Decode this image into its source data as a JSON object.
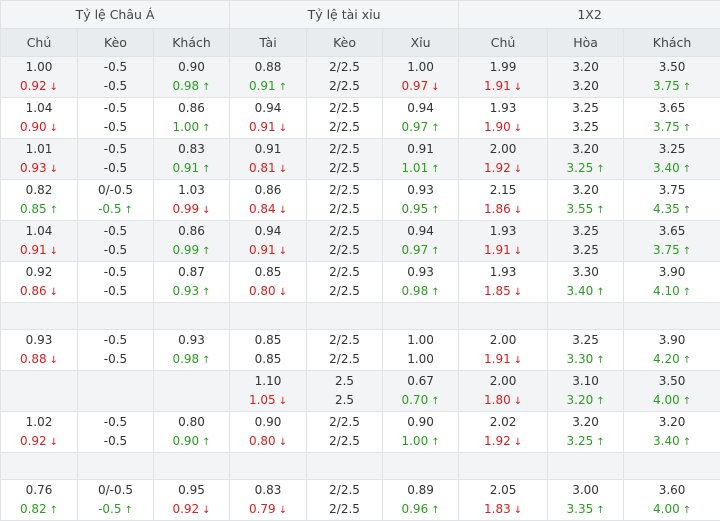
{
  "headers": {
    "groups": [
      "Tỷ lệ Châu Á",
      "Tỷ lệ tài xỉu",
      "1X2"
    ],
    "columns": [
      "Chủ",
      "Kèo",
      "Khách",
      "Tài",
      "Kèo",
      "Xỉu",
      "Chủ",
      "Hòa",
      "Khách"
    ]
  },
  "colors": {
    "up": "#2a9d1f",
    "down": "#d62020",
    "neutral": "#333333"
  },
  "rows": [
    {
      "type": "data",
      "alt": true,
      "cells": [
        [
          "1.00",
          {
            "v": "0.92",
            "d": "down"
          }
        ],
        [
          "-0.5",
          "-0.5"
        ],
        [
          "0.90",
          {
            "v": "0.98",
            "d": "up"
          }
        ],
        [
          "0.88",
          {
            "v": "0.91",
            "d": "up"
          }
        ],
        [
          "2/2.5",
          "2/2.5"
        ],
        [
          "1.00",
          {
            "v": "0.97",
            "d": "down"
          }
        ],
        [
          "1.99",
          {
            "v": "1.91",
            "d": "down"
          }
        ],
        [
          "3.20",
          "3.20"
        ],
        [
          "3.50",
          {
            "v": "3.75",
            "d": "up"
          }
        ]
      ]
    },
    {
      "type": "data",
      "alt": false,
      "cells": [
        [
          "1.04",
          {
            "v": "0.90",
            "d": "down"
          }
        ],
        [
          "-0.5",
          "-0.5"
        ],
        [
          "0.86",
          {
            "v": "1.00",
            "d": "up"
          }
        ],
        [
          "0.94",
          {
            "v": "0.91",
            "d": "down"
          }
        ],
        [
          "2/2.5",
          "2/2.5"
        ],
        [
          "0.94",
          {
            "v": "0.97",
            "d": "up"
          }
        ],
        [
          "1.93",
          {
            "v": "1.90",
            "d": "down"
          }
        ],
        [
          "3.25",
          "3.25"
        ],
        [
          "3.65",
          {
            "v": "3.75",
            "d": "up"
          }
        ]
      ]
    },
    {
      "type": "data",
      "alt": true,
      "cells": [
        [
          "1.01",
          {
            "v": "0.93",
            "d": "down"
          }
        ],
        [
          "-0.5",
          "-0.5"
        ],
        [
          "0.83",
          {
            "v": "0.91",
            "d": "up"
          }
        ],
        [
          "0.91",
          {
            "v": "0.81",
            "d": "down"
          }
        ],
        [
          "2/2.5",
          "2/2.5"
        ],
        [
          "0.91",
          {
            "v": "1.01",
            "d": "up"
          }
        ],
        [
          "2.00",
          {
            "v": "1.92",
            "d": "down"
          }
        ],
        [
          "3.20",
          {
            "v": "3.25",
            "d": "up"
          }
        ],
        [
          "3.25",
          {
            "v": "3.40",
            "d": "up"
          }
        ]
      ]
    },
    {
      "type": "data",
      "alt": false,
      "cells": [
        [
          "0.82",
          {
            "v": "0.85",
            "d": "up"
          }
        ],
        [
          "0/-0.5",
          {
            "v": "-0.5",
            "d": "up"
          }
        ],
        [
          "1.03",
          {
            "v": "0.99",
            "d": "down"
          }
        ],
        [
          "0.86",
          {
            "v": "0.84",
            "d": "down"
          }
        ],
        [
          "2/2.5",
          "2/2.5"
        ],
        [
          "0.93",
          {
            "v": "0.95",
            "d": "up"
          }
        ],
        [
          "2.15",
          {
            "v": "1.86",
            "d": "down"
          }
        ],
        [
          "3.20",
          {
            "v": "3.55",
            "d": "up"
          }
        ],
        [
          "3.75",
          {
            "v": "4.35",
            "d": "up"
          }
        ]
      ]
    },
    {
      "type": "data",
      "alt": true,
      "cells": [
        [
          "1.04",
          {
            "v": "0.91",
            "d": "down"
          }
        ],
        [
          "-0.5",
          "-0.5"
        ],
        [
          "0.86",
          {
            "v": "0.99",
            "d": "up"
          }
        ],
        [
          "0.94",
          {
            "v": "0.91",
            "d": "down"
          }
        ],
        [
          "2/2.5",
          "2/2.5"
        ],
        [
          "0.94",
          {
            "v": "0.97",
            "d": "up"
          }
        ],
        [
          "1.93",
          {
            "v": "1.91",
            "d": "down"
          }
        ],
        [
          "3.25",
          "3.25"
        ],
        [
          "3.65",
          {
            "v": "3.75",
            "d": "up"
          }
        ]
      ]
    },
    {
      "type": "data",
      "alt": false,
      "cells": [
        [
          "0.92",
          {
            "v": "0.86",
            "d": "down"
          }
        ],
        [
          "-0.5",
          "-0.5"
        ],
        [
          "0.87",
          {
            "v": "0.93",
            "d": "up"
          }
        ],
        [
          "0.85",
          {
            "v": "0.80",
            "d": "down"
          }
        ],
        [
          "2/2.5",
          "2/2.5"
        ],
        [
          "0.93",
          {
            "v": "0.98",
            "d": "up"
          }
        ],
        [
          "1.93",
          {
            "v": "1.85",
            "d": "down"
          }
        ],
        [
          "3.30",
          {
            "v": "3.40",
            "d": "up"
          }
        ],
        [
          "3.90",
          {
            "v": "4.10",
            "d": "up"
          }
        ]
      ]
    },
    {
      "type": "empty",
      "alt": true
    },
    {
      "type": "data",
      "alt": false,
      "cells": [
        [
          "0.93",
          {
            "v": "0.88",
            "d": "down"
          }
        ],
        [
          "-0.5",
          "-0.5"
        ],
        [
          "0.93",
          {
            "v": "0.98",
            "d": "up"
          }
        ],
        [
          "0.85",
          "0.85"
        ],
        [
          "2/2.5",
          "2/2.5"
        ],
        [
          "1.00",
          "1.00"
        ],
        [
          "2.00",
          {
            "v": "1.91",
            "d": "down"
          }
        ],
        [
          "3.25",
          {
            "v": "3.30",
            "d": "up"
          }
        ],
        [
          "3.90",
          {
            "v": "4.20",
            "d": "up"
          }
        ]
      ]
    },
    {
      "type": "data",
      "alt": true,
      "cells": [
        [
          "",
          ""
        ],
        [
          "",
          ""
        ],
        [
          "",
          ""
        ],
        [
          "1.10",
          {
            "v": "1.05",
            "d": "down"
          }
        ],
        [
          "2.5",
          "2.5"
        ],
        [
          "0.67",
          {
            "v": "0.70",
            "d": "up"
          }
        ],
        [
          "2.00",
          {
            "v": "1.80",
            "d": "down"
          }
        ],
        [
          "3.10",
          {
            "v": "3.20",
            "d": "up"
          }
        ],
        [
          "3.50",
          {
            "v": "4.00",
            "d": "up"
          }
        ]
      ]
    },
    {
      "type": "data",
      "alt": false,
      "cells": [
        [
          "1.02",
          {
            "v": "0.92",
            "d": "down"
          }
        ],
        [
          "-0.5",
          "-0.5"
        ],
        [
          "0.80",
          {
            "v": "0.90",
            "d": "up"
          }
        ],
        [
          "0.90",
          {
            "v": "0.80",
            "d": "down"
          }
        ],
        [
          "2/2.5",
          "2/2.5"
        ],
        [
          "0.90",
          {
            "v": "1.00",
            "d": "up"
          }
        ],
        [
          "2.02",
          {
            "v": "1.92",
            "d": "down"
          }
        ],
        [
          "3.20",
          {
            "v": "3.25",
            "d": "up"
          }
        ],
        [
          "3.20",
          {
            "v": "3.40",
            "d": "up"
          }
        ]
      ]
    },
    {
      "type": "empty",
      "alt": true
    },
    {
      "type": "data",
      "alt": false,
      "cells": [
        [
          "0.76",
          {
            "v": "0.82",
            "d": "up"
          }
        ],
        [
          "0/-0.5",
          {
            "v": "-0.5",
            "d": "up"
          }
        ],
        [
          "0.95",
          {
            "v": "0.92",
            "d": "down"
          }
        ],
        [
          "0.83",
          {
            "v": "0.79",
            "d": "down"
          }
        ],
        [
          "2/2.5",
          "2/2.5"
        ],
        [
          "0.89",
          {
            "v": "0.96",
            "d": "up"
          }
        ],
        [
          "2.05",
          {
            "v": "1.83",
            "d": "down"
          }
        ],
        [
          "3.00",
          {
            "v": "3.35",
            "d": "up"
          }
        ],
        [
          "3.60",
          {
            "v": "4.00",
            "d": "up"
          }
        ]
      ]
    }
  ]
}
